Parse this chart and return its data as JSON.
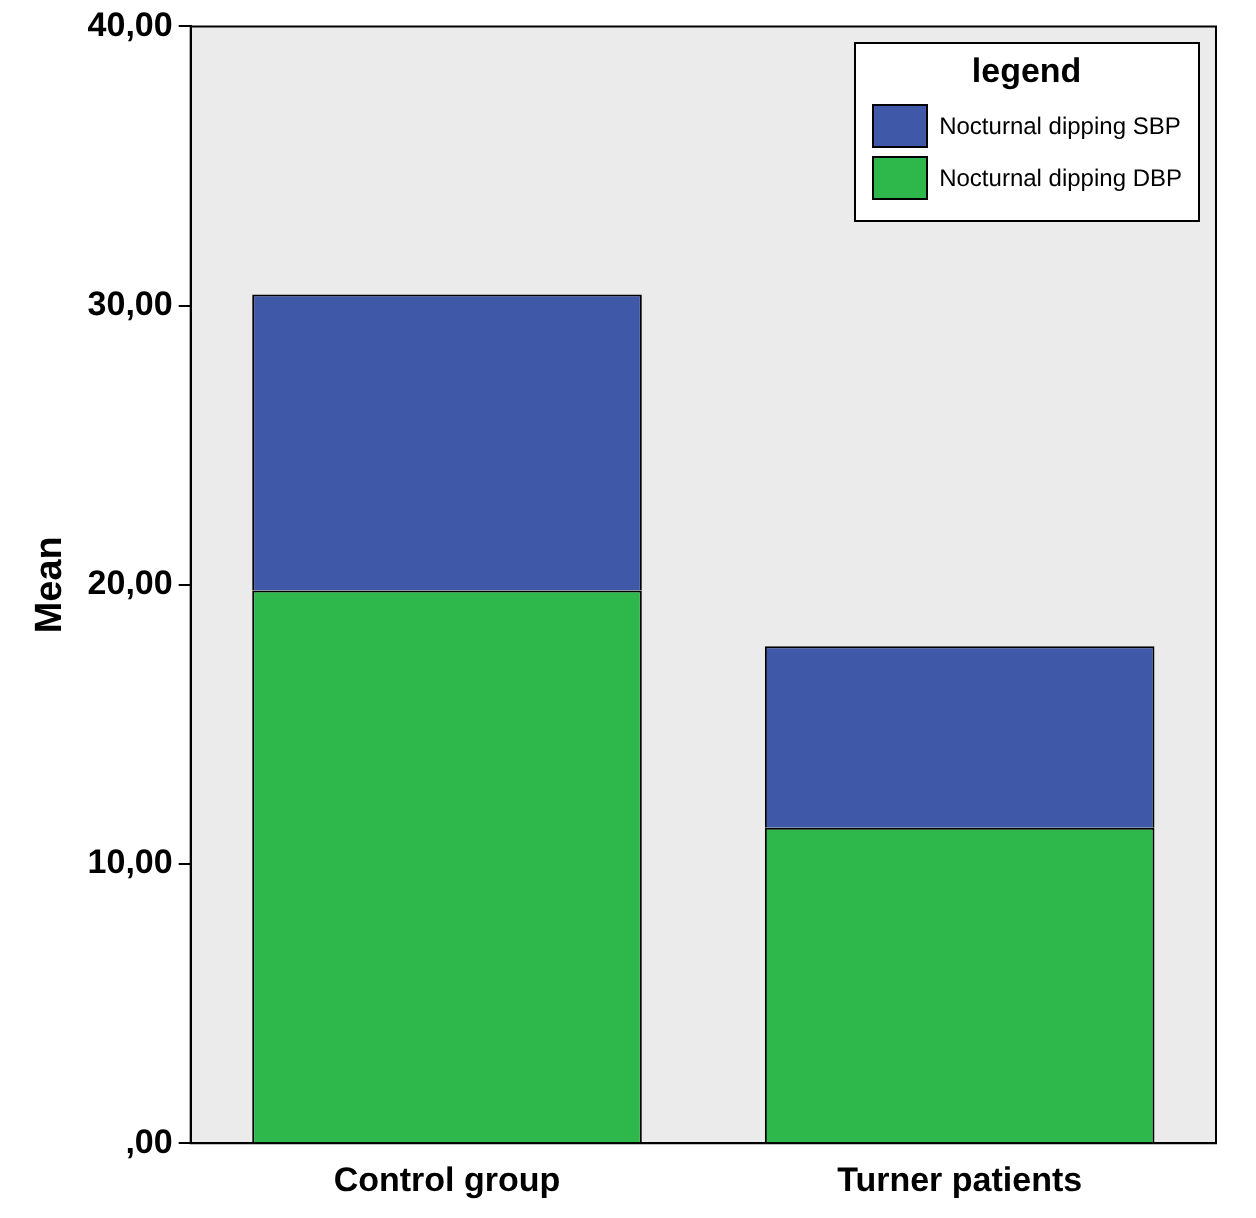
{
  "chart_data": {
    "type": "bar",
    "stacked": true,
    "ylabel": "Mean",
    "legend_title": "legend",
    "legend": "top right",
    "grid": false,
    "categories": [
      "Control group",
      "Turner patients"
    ],
    "series": [
      {
        "name": "Nocturnal dipping DBP",
        "color": "#2eb84b",
        "values": [
          19.8,
          11.3
        ]
      },
      {
        "name": "Nocturnal dipping SBP",
        "color": "#3f58a8",
        "values": [
          10.6,
          6.5
        ]
      }
    ],
    "ylim": [
      0,
      40
    ],
    "yticks": [
      {
        "value": 0,
        "label": ",00"
      },
      {
        "value": 10,
        "label": "10,00"
      },
      {
        "value": 20,
        "label": "20,00"
      },
      {
        "value": 30,
        "label": "30,00"
      },
      {
        "value": 40,
        "label": "40,00"
      }
    ]
  }
}
